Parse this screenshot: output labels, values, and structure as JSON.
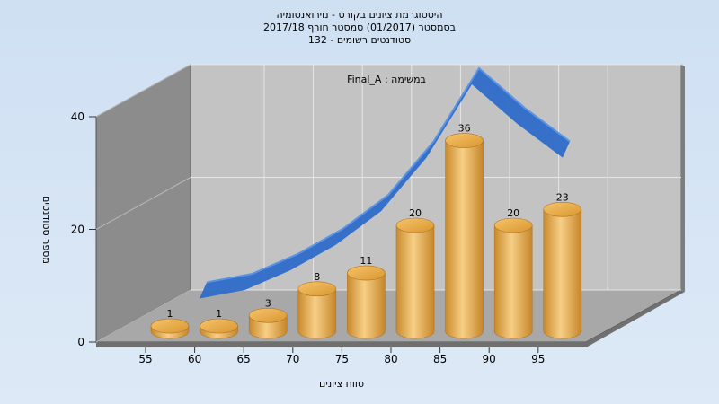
{
  "chart_data": {
    "type": "bar",
    "title": [
      "היסטוגרמת ציונים בקורס - נוירואנטומיה",
      "בסמסטר  (01/2017)  סמסטר חורף 2017/18",
      "132 - סטודנטים רשומים"
    ],
    "subtitle": "Final_A : במשימה",
    "xlabel": "טווח ציונים",
    "ylabel": "מספר סטודנטים",
    "x_ticks": [
      "55",
      "60",
      "65",
      "70",
      "75",
      "80",
      "85",
      "90",
      "95"
    ],
    "y_ticks": [
      "0",
      "20",
      "40"
    ],
    "ylim": [
      0,
      40
    ],
    "values": [
      1,
      1,
      3,
      8,
      11,
      20,
      36,
      20,
      23
    ],
    "curve": [
      2,
      3.5,
      7,
      11.5,
      17.5,
      27,
      40,
      33,
      27
    ]
  },
  "colors": {
    "bar": "#e8a94a",
    "curve": "#2e6cc9",
    "back_wall": "#c3c3c3",
    "side_wall": "#8c8c8c",
    "floor": "#a8a8a8"
  }
}
